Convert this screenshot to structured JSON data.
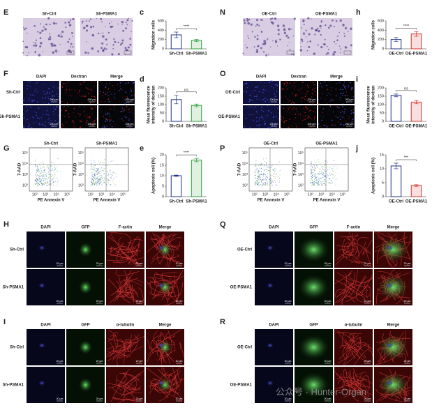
{
  "image_panels": [
    {
      "letter": "E",
      "columns": [
        "Sh-Ctrl",
        "Sh-PSMA1"
      ],
      "rows": []
    },
    {
      "letter": "F",
      "columns": [
        "DAPI",
        "Dextran",
        "Merge"
      ],
      "rows": [
        "Sh-Ctrl",
        "Sh-PSMA1"
      ]
    },
    {
      "letter": "H",
      "columns": [
        "DAPI",
        "GFP",
        "F-actin",
        "Merge"
      ],
      "rows": [
        "Sh-Ctrl",
        "Sh-PSMA1"
      ]
    },
    {
      "letter": "I",
      "columns": [
        "DAPI",
        "GFP",
        "α-tubulin",
        "Merge"
      ],
      "rows": [
        "Sh-Ctrl",
        "Sh-PSMA1"
      ]
    },
    {
      "letter": "N",
      "columns": [
        "OE-Ctrl",
        "OE-PSMA1"
      ],
      "rows": []
    },
    {
      "letter": "O",
      "columns": [
        "DAPI",
        "Dextran",
        "Merge"
      ],
      "rows": [
        "OE-Ctrl",
        "OE-PSMA1"
      ]
    },
    {
      "letter": "Q",
      "columns": [
        "DAPI",
        "GFP",
        "F-actin",
        "Merge"
      ],
      "rows": [
        "OE-Ctrl",
        "OE-PSMA1"
      ]
    },
    {
      "letter": "R",
      "columns": [
        "DAPI",
        "GFP",
        "α-tubulin",
        "Merge"
      ],
      "rows": [
        "OE-Ctrl",
        "OE-PSMA1"
      ]
    }
  ],
  "scale_bars": [
    "200 μm",
    "20 μm"
  ],
  "flow_panels": [
    {
      "letter": "G",
      "columns": [
        "Sh-Ctrl",
        "Sh-PSMA1"
      ],
      "xlabel": "PE Annexin V",
      "ylabel": "7-AAD",
      "ticks": [
        "10²",
        "10³",
        "10⁴",
        "10⁵"
      ]
    },
    {
      "letter": "P",
      "columns": [
        "OE-Ctrl",
        "OE-PSMA1"
      ],
      "xlabel": "PE Annexin V",
      "ylabel": "7-AAD",
      "ticks": [
        "10²",
        "10³",
        "10⁴",
        "10⁵"
      ]
    }
  ],
  "chart_data": [
    {
      "panel": "c",
      "type": "bar",
      "ylabel": [
        "Migration cells"
      ],
      "categories": [
        "Sh-Ctrl",
        "Sh-PSMA1"
      ],
      "values": [
        300,
        180
      ],
      "errors": [
        60,
        25
      ],
      "colors": [
        "#1f2f8a",
        "#2e9e3e"
      ],
      "ylim": [
        0,
        600
      ],
      "yticks": [
        0,
        200,
        400,
        600
      ],
      "significance": "****"
    },
    {
      "panel": "d",
      "type": "bar",
      "ylabel": [
        "Mean fluorescence",
        "intensity of dextran"
      ],
      "categories": [
        "Sh-Ctrl",
        "Sh-PSMA1"
      ],
      "values": [
        130,
        95
      ],
      "errors": [
        25,
        8
      ],
      "colors": [
        "#1f2f8a",
        "#2e9e3e"
      ],
      "ylim": [
        0,
        200
      ],
      "yticks": [
        0,
        50,
        100,
        150,
        200
      ],
      "significance": "ns"
    },
    {
      "panel": "e",
      "type": "bar",
      "ylabel": [
        "Apoptosis cell (%)"
      ],
      "categories": [
        "Sh-Ctrl",
        "Sh-PSMA1"
      ],
      "values": [
        10,
        17.5
      ],
      "errors": [
        0.3,
        0.8
      ],
      "colors": [
        "#1f2f8a",
        "#2e9e3e"
      ],
      "ylim": [
        0,
        20
      ],
      "yticks": [
        0,
        5,
        10,
        15,
        20
      ],
      "significance": "****"
    },
    {
      "panel": "h",
      "type": "bar",
      "ylabel": [
        "Migration cells"
      ],
      "categories": [
        "OE-Ctrl",
        "OE-PSMA1"
      ],
      "values": [
        200,
        320
      ],
      "errors": [
        40,
        50
      ],
      "colors": [
        "#1f2f8a",
        "#d6312b"
      ],
      "ylim": [
        0,
        600
      ],
      "yticks": [
        0,
        200,
        400,
        600
      ],
      "significance": "****"
    },
    {
      "panel": "i",
      "type": "bar",
      "ylabel": [
        "Mean fluorescence",
        "intensity of dextran"
      ],
      "categories": [
        "OE-Ctrl",
        "OE-PSMA1"
      ],
      "values": [
        155,
        115
      ],
      "errors": [
        8,
        10
      ],
      "colors": [
        "#1f2f8a",
        "#d6312b"
      ],
      "ylim": [
        0,
        200
      ],
      "yticks": [
        0,
        50,
        100,
        150,
        200
      ],
      "significance": "ns"
    },
    {
      "panel": "j",
      "type": "bar",
      "ylabel": [
        "Apoptosis cell (%)"
      ],
      "categories": [
        "OE-Ctrl",
        "OE-PSMA1"
      ],
      "values": [
        11,
        4
      ],
      "errors": [
        1,
        0.3
      ],
      "colors": [
        "#1f2f8a",
        "#d6312b"
      ],
      "ylim": [
        0,
        15
      ],
      "yticks": [
        0,
        5,
        10,
        15
      ],
      "significance": "***"
    }
  ],
  "watermark": "公众号 · Hunter-Organ"
}
